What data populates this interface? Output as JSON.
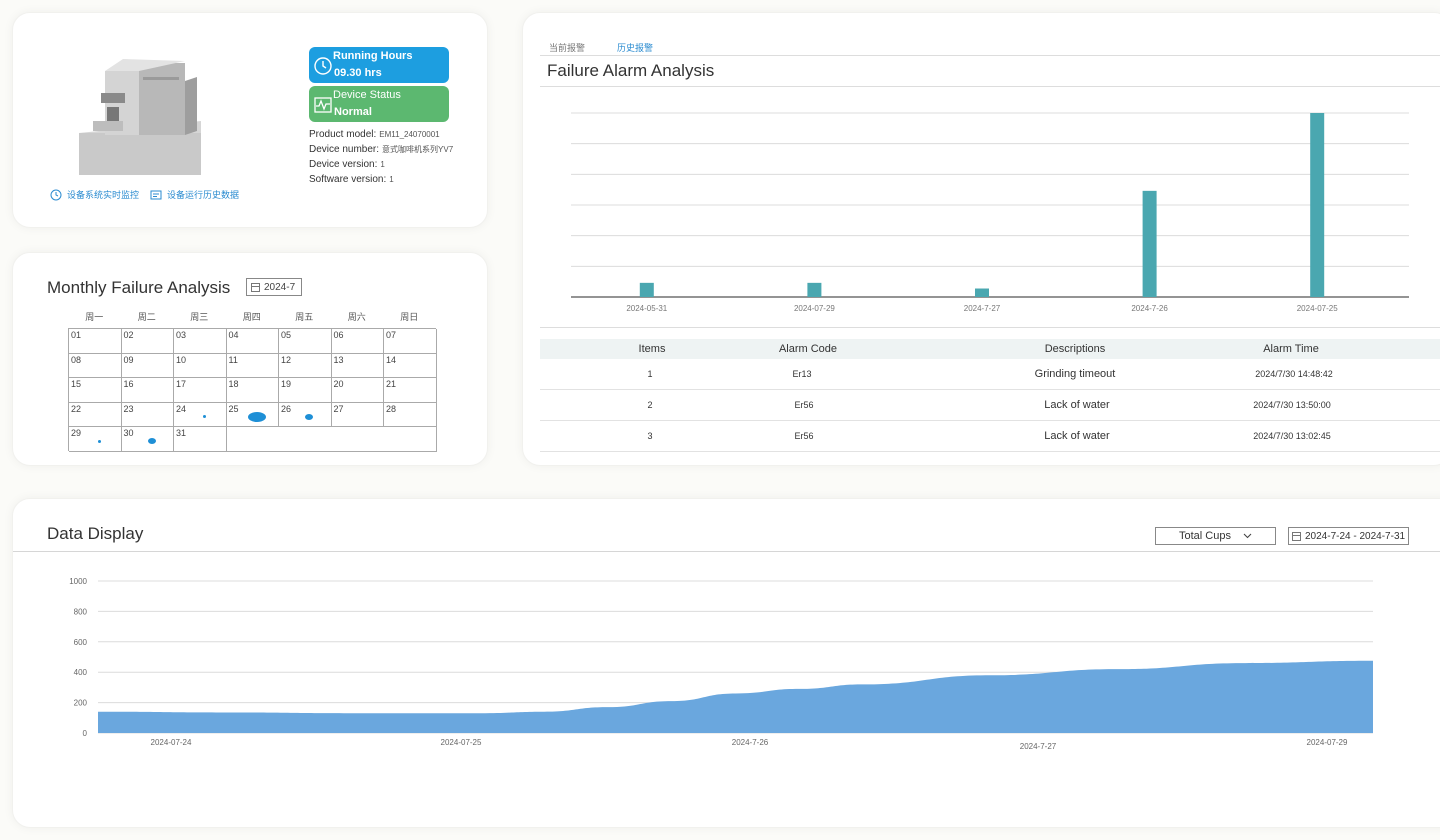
{
  "device": {
    "running": {
      "label": "Running Hours",
      "value": "09.30 hrs",
      "icon": "clock-icon"
    },
    "status": {
      "label": "Device Status",
      "value": "Normal",
      "icon": "pulse-icon"
    },
    "info": [
      {
        "label": "Product model:",
        "value": "EM11_24070001"
      },
      {
        "label": "Device number:",
        "value": "意式咖啡机系列YV7"
      },
      {
        "label": "Device version:",
        "value": "1"
      },
      {
        "label": "Software version:",
        "value": "1"
      }
    ],
    "links": [
      {
        "label": "设备系统实时监控",
        "icon": "clock-icon"
      },
      {
        "label": "设备运行历史数据",
        "icon": "history-icon"
      }
    ],
    "colors": {
      "running": "#1d9ee0",
      "status": "#5cb870"
    }
  },
  "monthly": {
    "title": "Monthly Failure Analysis",
    "month": "2024-7",
    "weekdays": [
      "周一",
      "周二",
      "周三",
      "周四",
      "周五",
      "周六",
      "周日"
    ],
    "days": [
      "01",
      "02",
      "03",
      "04",
      "05",
      "06",
      "07",
      "08",
      "09",
      "10",
      "11",
      "12",
      "13",
      "14",
      "15",
      "16",
      "17",
      "18",
      "19",
      "20",
      "21",
      "22",
      "23",
      "24",
      "25",
      "26",
      "27",
      "28",
      "29",
      "30",
      "31"
    ],
    "failure_days": [
      {
        "day": "24",
        "level": 1
      },
      {
        "day": "25",
        "level": 3
      },
      {
        "day": "26",
        "level": 2
      },
      {
        "day": "29",
        "level": 1
      },
      {
        "day": "30",
        "level": 2
      }
    ]
  },
  "failure": {
    "tabs": [
      "当前报警",
      "历史报警"
    ],
    "active_tab": 1,
    "title": "Failure Alarm Analysis",
    "table": {
      "headers": [
        "Items",
        "Alarm Code",
        "Descriptions",
        "Alarm Time"
      ],
      "rows": [
        [
          "1",
          "Er13",
          "Grinding timeout",
          "2024/7/30 14:48:42"
        ],
        [
          "2",
          "Er56",
          "Lack of water",
          "2024/7/30 13:50:00"
        ],
        [
          "3",
          "Er56",
          "Lack of water",
          "2024/7/30 13:02:45"
        ]
      ]
    }
  },
  "chart_data": [
    {
      "type": "bar",
      "title": "Failure Alarm Analysis",
      "categories": [
        "2024-05-31",
        "2024-07-29",
        "2024-7-27",
        "2024-7-26",
        "2024-07-25"
      ],
      "values": [
        1,
        1,
        0.6,
        7.5,
        13
      ],
      "ylim": [
        0,
        13
      ],
      "grid": true,
      "color": "#4aa7b0"
    },
    {
      "type": "area",
      "title": "Data Display",
      "x_labels": [
        "2024-07-24",
        "2024-07-25",
        "2024-7-26",
        "2024-7-27",
        "2024-07-29"
      ],
      "x": [
        0,
        0.1,
        0.2,
        0.3,
        0.35,
        0.4,
        0.45,
        0.5,
        0.55,
        0.6,
        0.7,
        0.8,
        0.9,
        1.0
      ],
      "values": [
        140,
        135,
        130,
        130,
        140,
        170,
        210,
        260,
        290,
        320,
        380,
        420,
        460,
        475
      ],
      "yticks": [
        0,
        200,
        400,
        600,
        800,
        1000
      ],
      "ylim": [
        0,
        1000
      ],
      "grid": true,
      "color": "#6aa7de"
    }
  ],
  "data_display": {
    "title": "Data Display",
    "metric": "Total Cups",
    "range": "2024-7-24 - 2024-7-31"
  }
}
